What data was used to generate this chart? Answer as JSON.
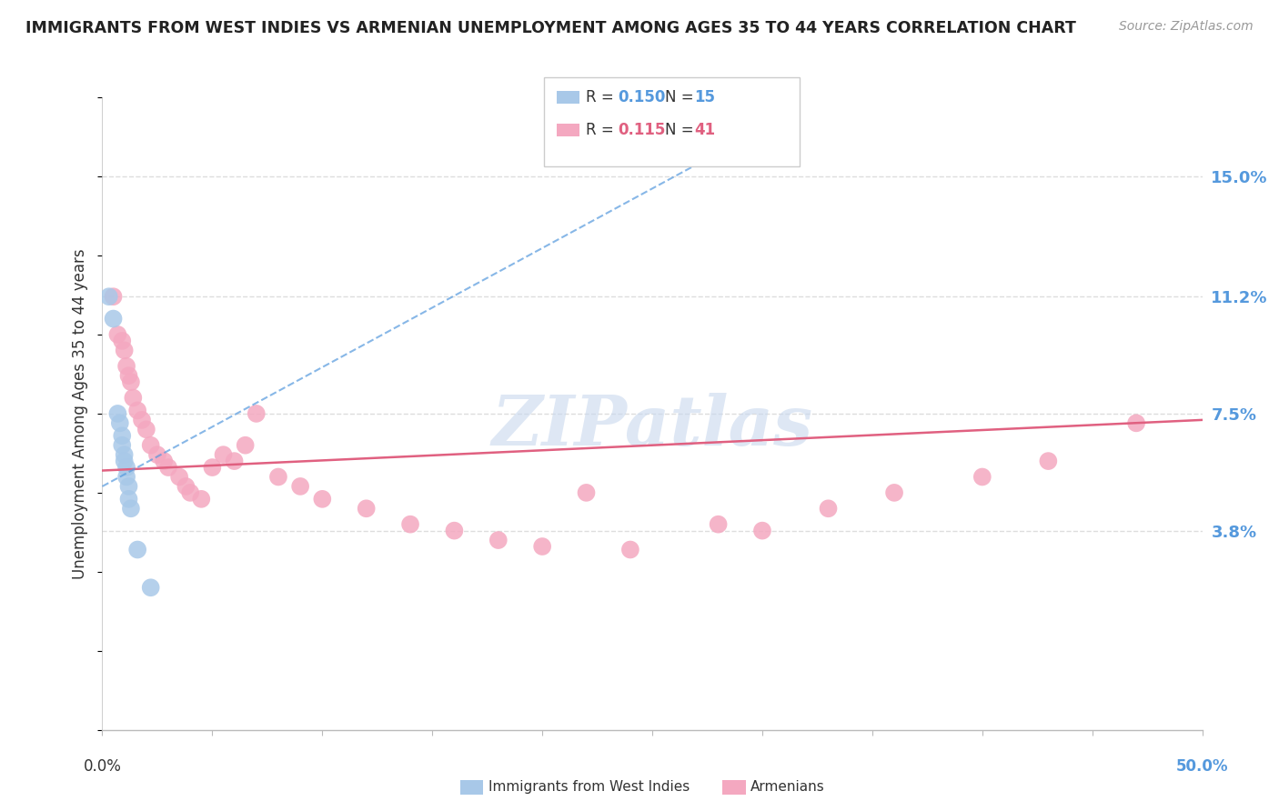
{
  "title": "IMMIGRANTS FROM WEST INDIES VS ARMENIAN UNEMPLOYMENT AMONG AGES 35 TO 44 YEARS CORRELATION CHART",
  "source": "Source: ZipAtlas.com",
  "ylabel": "Unemployment Among Ages 35 to 44 years",
  "ytick_values": [
    0.038,
    0.075,
    0.112,
    0.15
  ],
  "ytick_labels": [
    "3.8%",
    "7.5%",
    "11.2%",
    "15.0%"
  ],
  "xlim": [
    0.0,
    0.5
  ],
  "ylim": [
    -0.025,
    0.175
  ],
  "background_color": "#ffffff",
  "grid_color": "#dddddd",
  "west_indies_x": [
    0.003,
    0.005,
    0.007,
    0.008,
    0.009,
    0.009,
    0.01,
    0.01,
    0.011,
    0.011,
    0.012,
    0.012,
    0.013,
    0.016,
    0.022
  ],
  "west_indies_y": [
    0.112,
    0.105,
    0.075,
    0.072,
    0.068,
    0.065,
    0.062,
    0.06,
    0.058,
    0.055,
    0.052,
    0.048,
    0.045,
    0.032,
    0.02
  ],
  "armenian_x": [
    0.005,
    0.007,
    0.009,
    0.01,
    0.011,
    0.012,
    0.013,
    0.014,
    0.016,
    0.018,
    0.02,
    0.022,
    0.025,
    0.028,
    0.03,
    0.035,
    0.038,
    0.04,
    0.045,
    0.05,
    0.055,
    0.06,
    0.065,
    0.07,
    0.08,
    0.09,
    0.1,
    0.12,
    0.14,
    0.16,
    0.18,
    0.2,
    0.22,
    0.24,
    0.28,
    0.3,
    0.33,
    0.36,
    0.4,
    0.43,
    0.47
  ],
  "armenian_y": [
    0.112,
    0.1,
    0.098,
    0.095,
    0.09,
    0.087,
    0.085,
    0.08,
    0.076,
    0.073,
    0.07,
    0.065,
    0.062,
    0.06,
    0.058,
    0.055,
    0.052,
    0.05,
    0.048,
    0.058,
    0.062,
    0.06,
    0.065,
    0.075,
    0.055,
    0.052,
    0.048,
    0.045,
    0.04,
    0.038,
    0.035,
    0.033,
    0.05,
    0.032,
    0.04,
    0.038,
    0.045,
    0.05,
    0.055,
    0.06,
    0.072
  ],
  "west_indies_color": "#a8c8e8",
  "armenian_color": "#f4a8c0",
  "west_indies_line_color": "#5599dd",
  "armenian_line_color": "#e06080",
  "legend_R_wi": "0.150",
  "legend_N_wi": "15",
  "legend_R_ar": "0.115",
  "legend_N_ar": "41",
  "west_indies_label": "Immigrants from West Indies",
  "armenian_label": "Armenians",
  "marker_size": 200
}
